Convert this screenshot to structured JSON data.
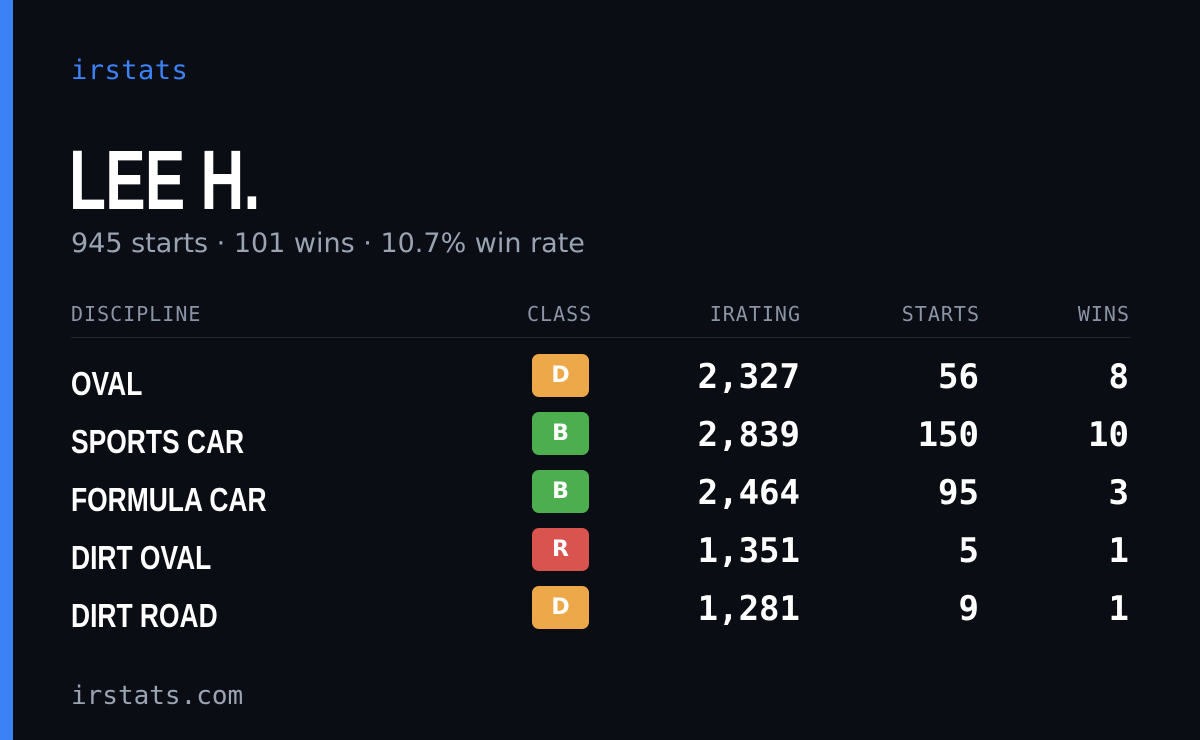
{
  "brand": "irstats",
  "player": {
    "name": "LEE H.",
    "summary": "945 starts · 101 wins · 10.7% win rate"
  },
  "colors": {
    "accent": "#3b82f6",
    "background": "#0a0d14",
    "class_D": "#eda84a",
    "class_B": "#4cae4f",
    "class_R": "#d9534f"
  },
  "table": {
    "headers": {
      "discipline": "DISCIPLINE",
      "class": "CLASS",
      "irating": "IRATING",
      "starts": "STARTS",
      "wins": "WINS"
    },
    "rows": [
      {
        "discipline": "OVAL",
        "class": "D",
        "irating": "2,327",
        "starts": "56",
        "wins": "8"
      },
      {
        "discipline": "SPORTS CAR",
        "class": "B",
        "irating": "2,839",
        "starts": "150",
        "wins": "10"
      },
      {
        "discipline": "FORMULA CAR",
        "class": "B",
        "irating": "2,464",
        "starts": "95",
        "wins": "3"
      },
      {
        "discipline": "DIRT OVAL",
        "class": "R",
        "irating": "1,351",
        "starts": "5",
        "wins": "1"
      },
      {
        "discipline": "DIRT ROAD",
        "class": "D",
        "irating": "1,281",
        "starts": "9",
        "wins": "1"
      }
    ]
  },
  "footer": "irstats.com"
}
